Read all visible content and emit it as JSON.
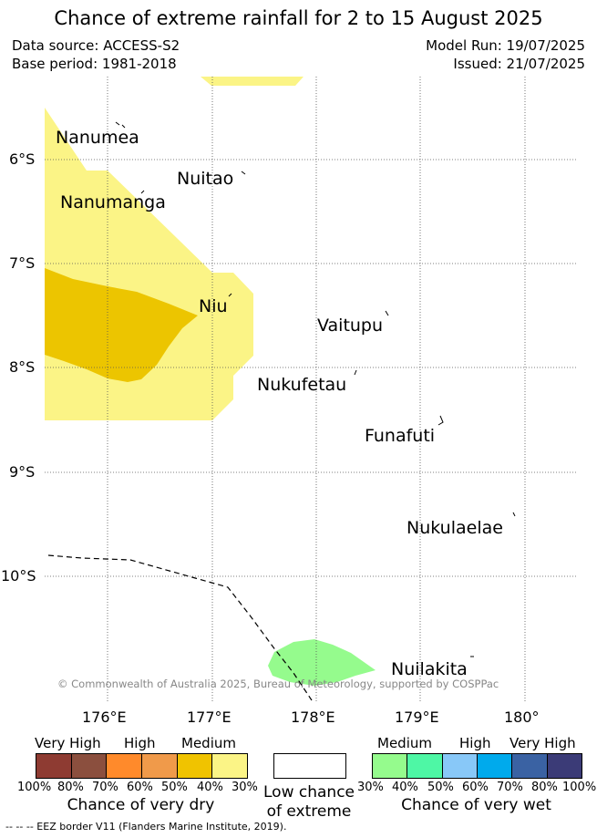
{
  "title": "Chance of extreme rainfall for 2 to 15 August 2025",
  "meta": {
    "data_source": "Data source: ACCESS-S2",
    "base_period": "Base period: 1981-2018",
    "model_run": "Model Run: 19/07/2025",
    "issued": "Issued: 21/07/2025"
  },
  "map": {
    "x_ticks": [
      "176°E",
      "177°E",
      "178°E",
      "179°E",
      "180°"
    ],
    "y_ticks": [
      "6°S",
      "7°S",
      "8°S",
      "9°S",
      "10°S"
    ],
    "places": [
      "Nanumea",
      "Nuitao",
      "Nanumanga",
      "Niu",
      "Vaitupu",
      "Nukufetau",
      "Funafuti",
      "Nukulaelae",
      "Nuilakita"
    ],
    "copyright": "© Commonwealth of Australia 2025, Bureau of Meteorology, supported by COSPPac"
  },
  "legend": {
    "dry": {
      "levels": [
        "Very High",
        "High",
        "Medium"
      ],
      "colors": [
        "#8e3b32",
        "#8b4f3e",
        "#ff8a2b",
        "#f09a4a",
        "#f0c300",
        "#fbf486"
      ],
      "pcts": [
        "100%",
        "80%",
        "70%",
        "60%",
        "50%",
        "40%",
        "30%"
      ],
      "title": "Chance of very dry"
    },
    "low": {
      "title_line1": "Low chance",
      "title_line2": "of extreme"
    },
    "wet": {
      "levels": [
        "Medium",
        "High",
        "Very High"
      ],
      "colors": [
        "#95fb8d",
        "#4ef7a5",
        "#88c8f8",
        "#00aaec",
        "#3a62a3",
        "#3b3b77"
      ],
      "pcts": [
        "30%",
        "40%",
        "50%",
        "60%",
        "70%",
        "80%",
        "100%"
      ],
      "title": "Chance of very wet"
    }
  },
  "footer": "-- -- -- EEZ border V11 (Flanders Marine Institute, 2019)."
}
